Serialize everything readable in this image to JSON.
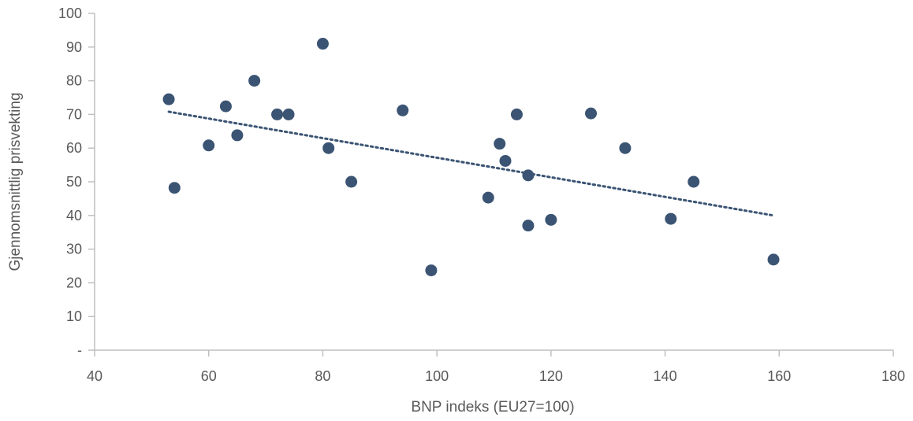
{
  "chart_data": {
    "type": "scatter",
    "title": "",
    "xlabel": "BNP indeks (EU27=100)",
    "ylabel": "Gjennomsnittlig prisvekting",
    "xlim": [
      40,
      180
    ],
    "ylim": [
      0,
      100
    ],
    "xticks": [
      40,
      60,
      80,
      100,
      120,
      140,
      160,
      180
    ],
    "yticks": [
      0,
      10,
      20,
      30,
      40,
      50,
      60,
      70,
      80,
      90,
      100
    ],
    "ytick_labels": [
      "-",
      "10",
      "20",
      "30",
      "40",
      "50",
      "60",
      "70",
      "80",
      "90",
      "100"
    ],
    "grid": false,
    "legend": "none",
    "colors": {
      "points": "#3b5473",
      "trendline": "#3b5473",
      "axis": "#bfbfbf",
      "text": "#595959"
    },
    "points": [
      {
        "x": 53,
        "y": 74.5
      },
      {
        "x": 54,
        "y": 48.2
      },
      {
        "x": 60,
        "y": 60.8
      },
      {
        "x": 63,
        "y": 72.4
      },
      {
        "x": 65,
        "y": 63.8
      },
      {
        "x": 68,
        "y": 80
      },
      {
        "x": 72,
        "y": 70
      },
      {
        "x": 74,
        "y": 70
      },
      {
        "x": 80,
        "y": 91
      },
      {
        "x": 81,
        "y": 60
      },
      {
        "x": 85,
        "y": 50
      },
      {
        "x": 94,
        "y": 71.2
      },
      {
        "x": 99,
        "y": 23.7
      },
      {
        "x": 109,
        "y": 45.3
      },
      {
        "x": 111,
        "y": 61.3
      },
      {
        "x": 112,
        "y": 56.2
      },
      {
        "x": 114,
        "y": 70
      },
      {
        "x": 116,
        "y": 51.9
      },
      {
        "x": 116,
        "y": 37
      },
      {
        "x": 120,
        "y": 38.7
      },
      {
        "x": 127,
        "y": 70.3
      },
      {
        "x": 133,
        "y": 60
      },
      {
        "x": 141,
        "y": 39
      },
      {
        "x": 145,
        "y": 50
      },
      {
        "x": 159,
        "y": 26.9
      }
    ],
    "trendline": {
      "style": "dotted",
      "x": [
        53,
        159
      ],
      "y": [
        70.8,
        40
      ]
    }
  }
}
